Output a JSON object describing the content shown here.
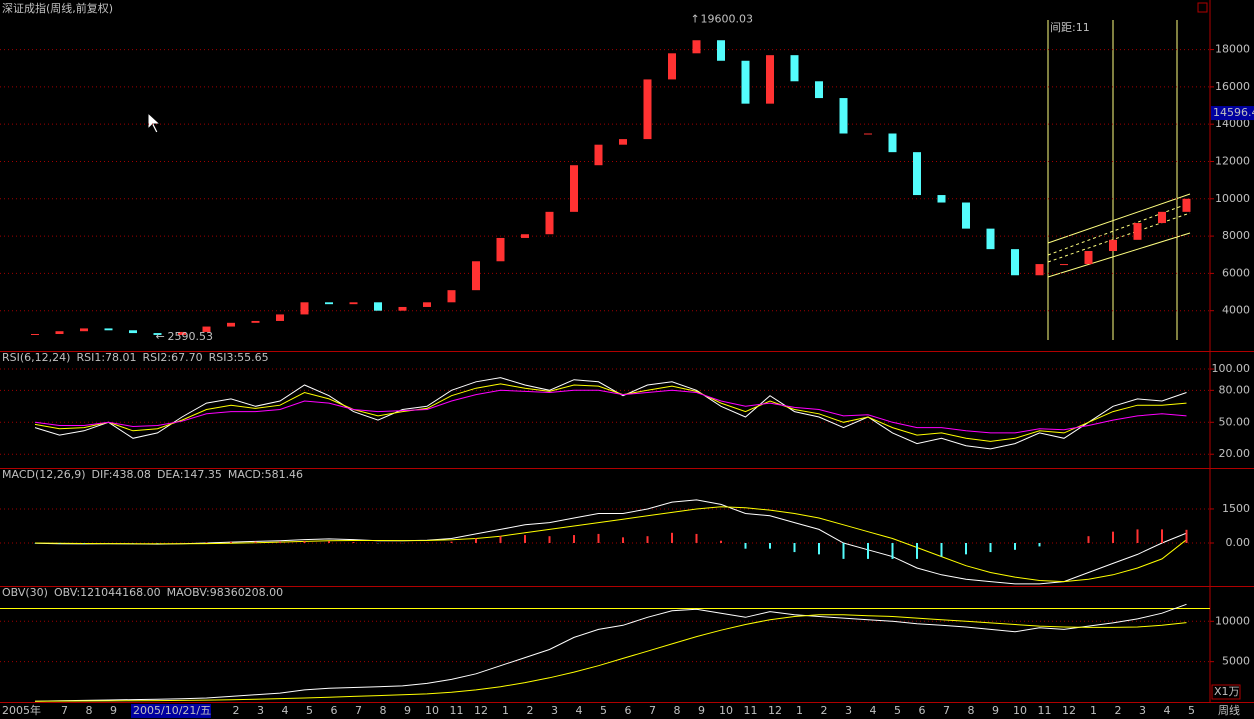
{
  "header": {
    "title": "深证成指(周线,前复权)",
    "corner_label": "周线"
  },
  "chart_data": [
    {
      "type": "candlestick",
      "close": [
        2750,
        2900,
        3050,
        2950,
        2800,
        2700,
        2860,
        3150,
        3350,
        3450,
        3800,
        4450,
        4350,
        4450,
        4000,
        4200,
        4450,
        5100,
        6650,
        7900,
        8100,
        9300,
        11800,
        12900,
        13200,
        16400,
        17800,
        18500,
        17400,
        15100,
        17700,
        16300,
        15400,
        13500,
        13500,
        12500,
        10200,
        9800,
        8400,
        7300,
        5900,
        6500,
        6500,
        7200,
        7800,
        8700,
        9300,
        10000
      ],
      "up_color": "#ff3232",
      "down_color": "#54fcfc",
      "ylim": [
        2000,
        19800
      ],
      "yticks": [
        4000,
        6000,
        8000,
        10000,
        12000,
        14000,
        16000,
        18000
      ],
      "high_label": 19600.03,
      "low_label": 2590.53,
      "cursor_price": 14596.4,
      "channel_label": "间距:11",
      "grid": true
    },
    {
      "type": "line",
      "title": "RSI(6,12,24)",
      "series": [
        {
          "name": "RSI1:78.01",
          "color": "#ffffff",
          "values": [
            45,
            38,
            42,
            50,
            35,
            40,
            55,
            68,
            72,
            65,
            70,
            85,
            75,
            60,
            52,
            62,
            65,
            80,
            88,
            92,
            85,
            80,
            90,
            88,
            75,
            85,
            88,
            80,
            65,
            55,
            75,
            60,
            55,
            45,
            55,
            40,
            30,
            35,
            28,
            25,
            30,
            40,
            35,
            50,
            65,
            72,
            70,
            78
          ]
        },
        {
          "name": "RSI2:67.70",
          "color": "#ffff00",
          "values": [
            48,
            44,
            45,
            50,
            42,
            44,
            52,
            62,
            66,
            63,
            66,
            78,
            72,
            62,
            56,
            60,
            63,
            75,
            82,
            86,
            82,
            79,
            85,
            84,
            76,
            80,
            84,
            79,
            68,
            60,
            70,
            62,
            58,
            50,
            55,
            45,
            38,
            40,
            35,
            32,
            35,
            42,
            40,
            50,
            60,
            66,
            66,
            68
          ]
        },
        {
          "name": "RSI3:55.65",
          "color": "#ff00ff",
          "values": [
            50,
            47,
            47,
            50,
            46,
            47,
            51,
            58,
            60,
            60,
            62,
            70,
            68,
            62,
            60,
            61,
            62,
            70,
            76,
            80,
            79,
            78,
            80,
            80,
            76,
            78,
            80,
            78,
            70,
            65,
            68,
            64,
            62,
            56,
            57,
            50,
            45,
            45,
            42,
            40,
            40,
            44,
            43,
            47,
            52,
            56,
            58,
            56
          ]
        }
      ],
      "ylim": [
        8,
        116
      ],
      "yticks": [
        {
          "value": 100,
          "label": "100.00"
        },
        {
          "value": 80,
          "label": "80.00"
        },
        {
          "value": 50,
          "label": "50.00"
        },
        {
          "value": 20,
          "label": "20.00"
        }
      ],
      "grid": true
    },
    {
      "type": "macd",
      "title": "MACD(12,26,9)",
      "series": [
        {
          "name": "DIF:438.08",
          "color": "#ffffff",
          "values": [
            -10,
            -30,
            -40,
            -30,
            -40,
            -50,
            -30,
            0,
            40,
            70,
            100,
            150,
            180,
            150,
            100,
            100,
            120,
            200,
            400,
            600,
            800,
            900,
            1100,
            1300,
            1300,
            1500,
            1800,
            1900,
            1700,
            1300,
            1200,
            900,
            600,
            0,
            -300,
            -600,
            -1100,
            -1400,
            -1600,
            -1700,
            -1800,
            -1800,
            -1700,
            -1300,
            -900,
            -500,
            0,
            438.08
          ]
        },
        {
          "name": "DEA:147.35",
          "color": "#ffff00",
          "values": [
            0,
            -10,
            -20,
            -25,
            -30,
            -35,
            -33,
            -25,
            -10,
            10,
            40,
            70,
            100,
            110,
            110,
            105,
            110,
            140,
            200,
            300,
            450,
            600,
            750,
            900,
            1050,
            1200,
            1350,
            1500,
            1600,
            1550,
            1450,
            1300,
            1100,
            800,
            500,
            200,
            -200,
            -600,
            -1000,
            -1300,
            -1500,
            -1650,
            -1700,
            -1600,
            -1400,
            -1100,
            -700,
            147.35
          ]
        },
        {
          "name": "MACD:581.46",
          "color": "#ff00ff",
          "up_color": "#ff3232",
          "down_color": "#54fcfc",
          "style": "bar",
          "values": [
            -10,
            -20,
            -20,
            -5,
            -10,
            -15,
            5,
            25,
            50,
            60,
            60,
            80,
            80,
            40,
            -10,
            -5,
            10,
            60,
            200,
            300,
            350,
            300,
            350,
            400,
            250,
            300,
            450,
            400,
            100,
            -250,
            -250,
            -400,
            -500,
            -700,
            -700,
            -700,
            -700,
            -600,
            -500,
            -400,
            -300,
            -150,
            0,
            300,
            500,
            600,
            600,
            581.46
          ]
        }
      ],
      "ylim": [
        -1850,
        3260
      ],
      "yticks": [
        1500,
        {
          "value": 0,
          "label": "0.00"
        }
      ],
      "grid": true
    },
    {
      "type": "line",
      "title": "OBV(30)",
      "unit_label": "X1万",
      "series": [
        {
          "name": "OBV:121044168.00",
          "color": "#ffffff",
          "values": [
            100,
            150,
            200,
            250,
            300,
            350,
            400,
            500,
            700,
            900,
            1100,
            1500,
            1700,
            1800,
            1900,
            2000,
            2300,
            2800,
            3500,
            4500,
            5500,
            6500,
            8000,
            9000,
            9500,
            10500,
            11300,
            11500,
            11000,
            10500,
            11200,
            10800,
            10600,
            10400,
            10200,
            10000,
            9700,
            9500,
            9300,
            9000,
            8700,
            9200,
            9000,
            9400,
            9800,
            10300,
            11000,
            12104
          ]
        },
        {
          "name": "MAOBV:98360208.00",
          "color": "#ffff00",
          "values": [
            100,
            110,
            120,
            140,
            160,
            180,
            200,
            240,
            290,
            350,
            420,
            500,
            600,
            700,
            800,
            900,
            1000,
            1200,
            1500,
            1900,
            2400,
            3000,
            3700,
            4500,
            5400,
            6300,
            7200,
            8100,
            8900,
            9600,
            10200,
            10600,
            10800,
            10800,
            10700,
            10600,
            10400,
            10200,
            10000,
            9800,
            9600,
            9400,
            9300,
            9250,
            9250,
            9300,
            9500,
            9836
          ]
        }
      ],
      "ylim": [
        125,
        14250
      ],
      "yticks": [
        10000,
        5000
      ],
      "grid": true
    }
  ],
  "x_axis": {
    "labels": [
      "2005年",
      "7",
      "8",
      "9",
      "2005/10/21/五",
      "2",
      "3",
      "4",
      "5",
      "6",
      "7",
      "8",
      "9",
      "10",
      "11",
      "12",
      "1",
      "2",
      "3",
      "4",
      "5",
      "6",
      "7",
      "8",
      "9",
      "10",
      "11",
      "12",
      "1",
      "2",
      "3",
      "4",
      "5",
      "6",
      "7",
      "8",
      "9",
      "10",
      "11",
      "12",
      "1",
      "2",
      "3",
      "4",
      "5"
    ]
  }
}
